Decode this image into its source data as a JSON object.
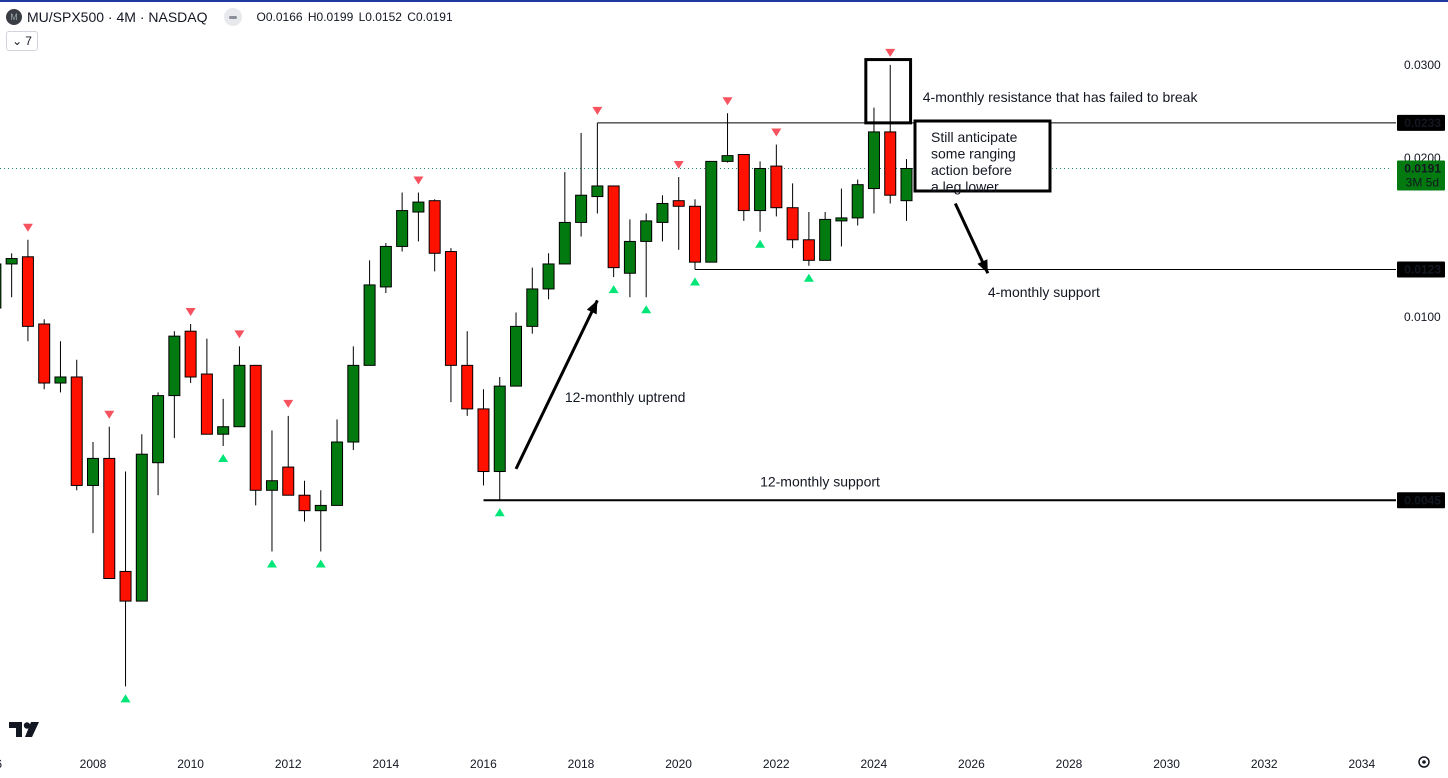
{
  "header": {
    "symbol": "MU/SPX500 · 4M · NASDAQ",
    "logo_letter": "M",
    "ohlc": "O0.0166 H0.0199 L0.0152 C0.0191",
    "indicator_count": "7",
    "collapse_icon": "chevron-down-icon"
  },
  "colors": {
    "up": "#037a10",
    "down": "#ff1100",
    "pivot_high": "#f7525f",
    "pivot_low": "#00e676",
    "price_line": "#1a8a7a",
    "last_price_badge": "#037a10",
    "level_badge": "#000000",
    "top_bar": "#1e3a9e"
  },
  "price_axis": {
    "ticks": [
      "0.0300",
      "0.0200",
      "0.0100"
    ],
    "last_price": "0.0191",
    "countdown": "3M 5d"
  },
  "time_axis": {
    "labels": [
      "06",
      "2008",
      "2010",
      "2012",
      "2014",
      "2016",
      "2018",
      "2020",
      "2022",
      "2024",
      "2026",
      "2028",
      "2030",
      "2032",
      "2034"
    ],
    "settings_icon": "gear-icon"
  },
  "chart_data": {
    "type": "candlestick",
    "interval": "4M",
    "y_scale": "log",
    "grid": false,
    "x_range": [
      "2005-09",
      "2035-01"
    ],
    "y_range": [
      0.0017,
      0.032
    ],
    "candles": [
      {
        "t": "2006-01",
        "o": 0.0104,
        "h": 0.013,
        "l": 0.0103,
        "c": 0.0126
      },
      {
        "t": "2006-05",
        "o": 0.0126,
        "h": 0.0132,
        "l": 0.0109,
        "c": 0.0129
      },
      {
        "t": "2006-09",
        "o": 0.013,
        "h": 0.014,
        "l": 0.009,
        "c": 0.0096
      },
      {
        "t": "2007-01",
        "o": 0.0097,
        "h": 0.0099,
        "l": 0.0073,
        "c": 0.0075
      },
      {
        "t": "2007-05",
        "o": 0.0075,
        "h": 0.009,
        "l": 0.0072,
        "c": 0.0077
      },
      {
        "t": "2007-09",
        "o": 0.0077,
        "h": 0.0083,
        "l": 0.0047,
        "c": 0.0048
      },
      {
        "t": "2008-01",
        "o": 0.0048,
        "h": 0.0058,
        "l": 0.0039,
        "c": 0.0054
      },
      {
        "t": "2008-05",
        "o": 0.0054,
        "h": 0.0062,
        "l": 0.0032,
        "c": 0.0032
      },
      {
        "t": "2008-09",
        "o": 0.0033,
        "h": 0.0051,
        "l": 0.002,
        "c": 0.0029
      },
      {
        "t": "2009-01",
        "o": 0.0029,
        "h": 0.006,
        "l": 0.0029,
        "c": 0.0055
      },
      {
        "t": "2009-05",
        "o": 0.0053,
        "h": 0.0072,
        "l": 0.0046,
        "c": 0.0071
      },
      {
        "t": "2009-09",
        "o": 0.0071,
        "h": 0.0094,
        "l": 0.0059,
        "c": 0.0092
      },
      {
        "t": "2010-01",
        "o": 0.0094,
        "h": 0.0097,
        "l": 0.0075,
        "c": 0.0077
      },
      {
        "t": "2010-05",
        "o": 0.0078,
        "h": 0.0091,
        "l": 0.006,
        "c": 0.006
      },
      {
        "t": "2010-09",
        "o": 0.006,
        "h": 0.007,
        "l": 0.0057,
        "c": 0.0062
      },
      {
        "t": "2011-01",
        "o": 0.0062,
        "h": 0.0088,
        "l": 0.0062,
        "c": 0.0081
      },
      {
        "t": "2011-05",
        "o": 0.0081,
        "h": 0.0081,
        "l": 0.0044,
        "c": 0.0047
      },
      {
        "t": "2011-09",
        "o": 0.0047,
        "h": 0.0061,
        "l": 0.0036,
        "c": 0.0049
      },
      {
        "t": "2012-01",
        "o": 0.0052,
        "h": 0.0065,
        "l": 0.0046,
        "c": 0.0046
      },
      {
        "t": "2012-05",
        "o": 0.0046,
        "h": 0.0049,
        "l": 0.0041,
        "c": 0.0043
      },
      {
        "t": "2012-09",
        "o": 0.0043,
        "h": 0.0047,
        "l": 0.0036,
        "c": 0.0044
      },
      {
        "t": "2013-01",
        "o": 0.0044,
        "h": 0.0064,
        "l": 0.0044,
        "c": 0.0058
      },
      {
        "t": "2013-05",
        "o": 0.0058,
        "h": 0.0088,
        "l": 0.0056,
        "c": 0.0081
      },
      {
        "t": "2013-09",
        "o": 0.0081,
        "h": 0.0128,
        "l": 0.0081,
        "c": 0.0115
      },
      {
        "t": "2014-01",
        "o": 0.0114,
        "h": 0.0138,
        "l": 0.0111,
        "c": 0.0136
      },
      {
        "t": "2014-05",
        "o": 0.0136,
        "h": 0.0172,
        "l": 0.0133,
        "c": 0.0159
      },
      {
        "t": "2014-09",
        "o": 0.0158,
        "h": 0.0172,
        "l": 0.0139,
        "c": 0.0165
      },
      {
        "t": "2015-01",
        "o": 0.0166,
        "h": 0.0167,
        "l": 0.0122,
        "c": 0.0132
      },
      {
        "t": "2015-05",
        "o": 0.0133,
        "h": 0.0135,
        "l": 0.0069,
        "c": 0.0081
      },
      {
        "t": "2015-09",
        "o": 0.0081,
        "h": 0.0094,
        "l": 0.0065,
        "c": 0.0067
      },
      {
        "t": "2016-01",
        "o": 0.0067,
        "h": 0.0073,
        "l": 0.0048,
        "c": 0.0051
      },
      {
        "t": "2016-05",
        "o": 0.0051,
        "h": 0.0077,
        "l": 0.0045,
        "c": 0.0074
      },
      {
        "t": "2016-09",
        "o": 0.0074,
        "h": 0.0102,
        "l": 0.0074,
        "c": 0.0096
      },
      {
        "t": "2017-01",
        "o": 0.0096,
        "h": 0.0124,
        "l": 0.0093,
        "c": 0.0113
      },
      {
        "t": "2017-05",
        "o": 0.0113,
        "h": 0.0132,
        "l": 0.0108,
        "c": 0.0126
      },
      {
        "t": "2017-09",
        "o": 0.0126,
        "h": 0.0188,
        "l": 0.0126,
        "c": 0.0151
      },
      {
        "t": "2018-01",
        "o": 0.0151,
        "h": 0.0223,
        "l": 0.0142,
        "c": 0.017
      },
      {
        "t": "2018-05",
        "o": 0.0169,
        "h": 0.0233,
        "l": 0.0157,
        "c": 0.0177
      },
      {
        "t": "2018-09",
        "o": 0.0177,
        "h": 0.0177,
        "l": 0.0119,
        "c": 0.0124
      },
      {
        "t": "2019-01",
        "o": 0.0121,
        "h": 0.0153,
        "l": 0.0109,
        "c": 0.0139
      },
      {
        "t": "2019-05",
        "o": 0.0139,
        "h": 0.0157,
        "l": 0.0109,
        "c": 0.0152
      },
      {
        "t": "2019-09",
        "o": 0.0151,
        "h": 0.017,
        "l": 0.0139,
        "c": 0.0164
      },
      {
        "t": "2020-01",
        "o": 0.0166,
        "h": 0.0184,
        "l": 0.0134,
        "c": 0.0162
      },
      {
        "t": "2020-05",
        "o": 0.0162,
        "h": 0.0167,
        "l": 0.0123,
        "c": 0.0127
      },
      {
        "t": "2020-09",
        "o": 0.0127,
        "h": 0.0197,
        "l": 0.0127,
        "c": 0.0197
      },
      {
        "t": "2021-01",
        "o": 0.0197,
        "h": 0.0243,
        "l": 0.0196,
        "c": 0.0202
      },
      {
        "t": "2021-05",
        "o": 0.0203,
        "h": 0.0203,
        "l": 0.0152,
        "c": 0.0159
      },
      {
        "t": "2021-09",
        "o": 0.0159,
        "h": 0.0197,
        "l": 0.0145,
        "c": 0.0191
      },
      {
        "t": "2022-01",
        "o": 0.0193,
        "h": 0.0212,
        "l": 0.0155,
        "c": 0.0161
      },
      {
        "t": "2022-05",
        "o": 0.0161,
        "h": 0.0179,
        "l": 0.0135,
        "c": 0.014
      },
      {
        "t": "2022-09",
        "o": 0.014,
        "h": 0.0158,
        "l": 0.0125,
        "c": 0.0128
      },
      {
        "t": "2023-01",
        "o": 0.0128,
        "h": 0.0158,
        "l": 0.0128,
        "c": 0.0153
      },
      {
        "t": "2023-05",
        "o": 0.0152,
        "h": 0.0175,
        "l": 0.0136,
        "c": 0.0154
      },
      {
        "t": "2023-09",
        "o": 0.0154,
        "h": 0.0182,
        "l": 0.0149,
        "c": 0.0178
      },
      {
        "t": "2024-01",
        "o": 0.0175,
        "h": 0.0249,
        "l": 0.0157,
        "c": 0.0224
      },
      {
        "t": "2024-05",
        "o": 0.0224,
        "h": 0.03,
        "l": 0.0164,
        "c": 0.017
      },
      {
        "t": "2024-09",
        "o": 0.0166,
        "h": 0.0199,
        "l": 0.0152,
        "c": 0.0191
      }
    ],
    "pivot_highs": [
      "2006-09",
      "2008-05",
      "2010-01",
      "2011-01",
      "2012-01",
      "2014-09",
      "2018-05",
      "2020-01",
      "2021-01",
      "2022-01",
      "2024-05"
    ],
    "pivot_lows": [
      "2008-09",
      "2010-09",
      "2011-09",
      "2012-09",
      "2016-05",
      "2018-09",
      "2019-05",
      "2020-05",
      "2021-09",
      "2022-09"
    ],
    "levels": [
      {
        "label": "0.0233",
        "price": 0.0233,
        "from": "2018-05",
        "thick": false
      },
      {
        "label": "0.0123",
        "price": 0.0123,
        "from": "2020-05",
        "thick": false
      },
      {
        "label": "0.0045",
        "price": 0.0045,
        "from": "2016-01",
        "thick": true
      }
    ],
    "annotations": [
      {
        "text": "4-monthly resistance that has failed to break",
        "t": "2025-01",
        "price": 0.0255
      },
      {
        "text": "4-monthly support",
        "t": "2026-05",
        "price": 0.0109
      },
      {
        "text": "12-monthly uptrend",
        "t": "2017-09",
        "price": 0.0069
      },
      {
        "text": "12-monthly support",
        "t": "2021-09",
        "price": 0.00478
      }
    ],
    "note_box": {
      "lines": [
        "Still anticipate",
        "some ranging",
        "action before",
        "a leg lower"
      ]
    },
    "highlight_box": {
      "t_from": "2023-11",
      "t_to": "2024-10",
      "p_from": 0.0233,
      "p_to": 0.0307
    },
    "arrows": [
      {
        "from_t": "2016-09",
        "from_p": 0.00516,
        "to_t": "2018-05",
        "to_p": 0.01075
      },
      {
        "from_t": "2025-09",
        "from_p": 0.0164,
        "to_t": "2026-05",
        "to_p": 0.0121
      }
    ]
  }
}
